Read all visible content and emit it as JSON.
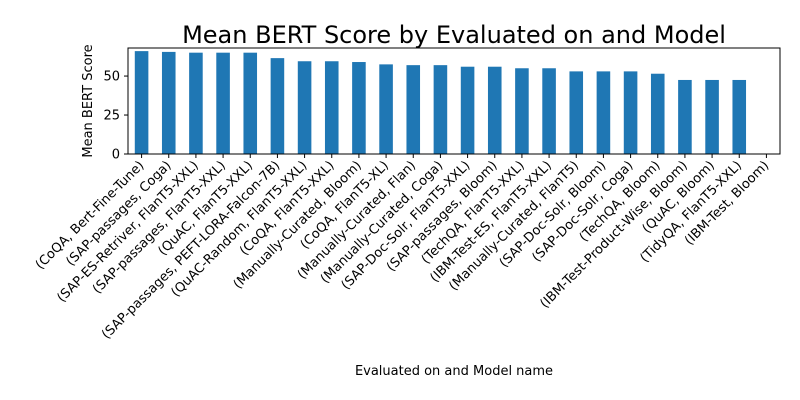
{
  "chart_data": {
    "type": "bar",
    "title": "Mean BERT Score by Evaluated on and Model",
    "xlabel": "Evaluated on and Model name",
    "ylabel": "Mean BERT Score",
    "ylim": [
      0,
      68
    ],
    "yticks": [
      0,
      25,
      50
    ],
    "grid": false,
    "bar_color": "#1f77b4",
    "categories": [
      "(CoQA, Bert-Fine-Tune)",
      "(SAP-passages, Coga)",
      "(SAP-ES-Retriver, FlanT5-XXL)",
      "(SAP-passages, FlanT5-XXL)",
      "(QuAC, FlanT5-XXL)",
      "(SAP-passages, PEFT-LORA-Falcon-7B)",
      "(QuAC-Random, FlanT5-XXL)",
      "(CoQA, FlanT5-XXL)",
      "(Manually-Curated, Bloom)",
      "(CoQA, FlanT5-XL)",
      "(Manually-Curated, Flan)",
      "(Manually-Curated, Coga)",
      "(SAP-Doc-Solr, FlanT5-XXL)",
      "(SAP-passages, Bloom)",
      "(TechQA, FlanT5-XXL)",
      "(IBM-Test-ES, FlanT5-XXL)",
      "(Manually-Curated, FlanT5)",
      "(SAP-Doc-Solr, Bloom)",
      "(SAP-Doc-Solr, Coga)",
      "(TechQA, Bloom)",
      "(IBM-Test-Product-Wise, Bloom)",
      "(QuAC, Bloom)",
      "(TidyQA, FlanT5-XXL)",
      "(IBM-Test, Bloom)"
    ],
    "values": [
      66,
      65.5,
      65,
      65,
      65,
      61.5,
      59.5,
      59.5,
      59,
      57.5,
      57,
      57,
      56,
      56,
      55,
      55,
      53,
      53,
      53,
      51.5,
      47.5,
      47.5,
      47.5,
      0
    ]
  }
}
